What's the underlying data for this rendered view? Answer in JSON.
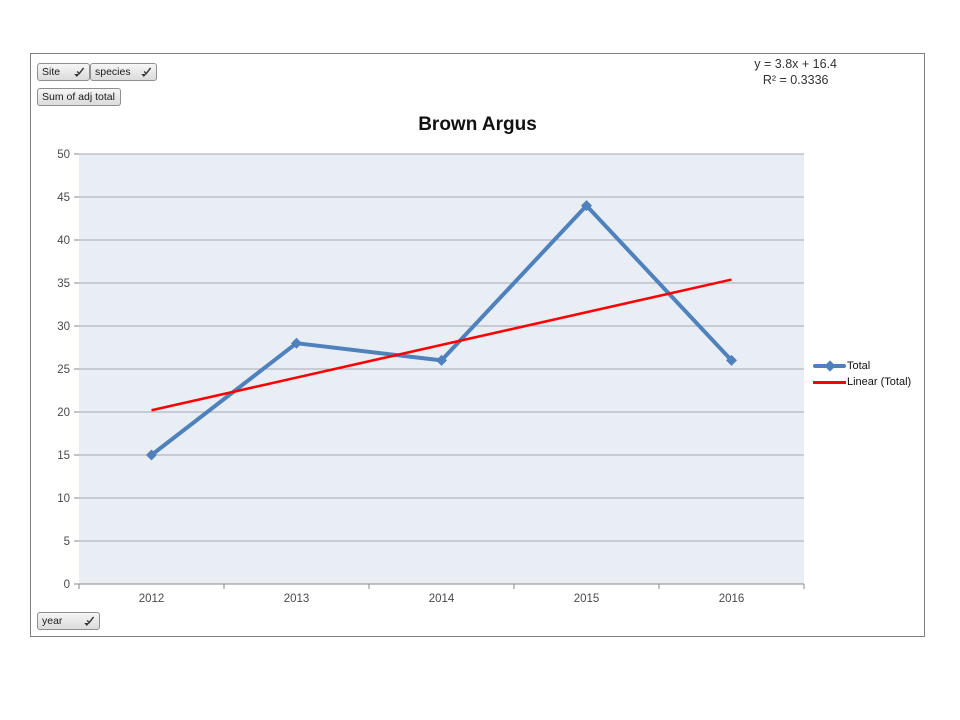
{
  "pivot_buttons": {
    "site_label": "Site",
    "species_label": "species",
    "value_label": "Sum of adj total",
    "axis_label": "year"
  },
  "icons": {
    "field_dropdown": "filter-dropdown-arrow"
  },
  "equation": {
    "line1": "y = 3.8x + 16.4",
    "line2": "R² = 0.3336"
  },
  "chart_data": {
    "type": "line",
    "title": "Brown Argus",
    "categories": [
      "2012",
      "2013",
      "2014",
      "2015",
      "2016"
    ],
    "series": [
      {
        "name": "Total",
        "values": [
          15,
          28,
          26,
          44,
          26
        ],
        "color": "#4F81BD",
        "marker": "diamond"
      }
    ],
    "trendline": {
      "name": "Linear (Total)",
      "equation": "y = 3.8x + 16.4",
      "r_squared": 0.3336,
      "color": "#FF0000",
      "start_value": 20.2,
      "end_value": 35.4
    },
    "xlabel": "",
    "ylabel": "",
    "ylim": [
      0,
      50
    ],
    "ytick_step": 5,
    "grid": true,
    "legend_position": "right",
    "plot_fill": "#E9EDF4",
    "gridline_color": "#A3A9B3",
    "axis_line_color": "#898989",
    "tick_label_color": "#4a4a4a"
  },
  "legend": {
    "items": [
      {
        "label": "Total",
        "color": "#4F81BD",
        "type": "line-diamond"
      },
      {
        "label": "Linear (Total)",
        "color": "#FF0000",
        "type": "line"
      }
    ]
  }
}
